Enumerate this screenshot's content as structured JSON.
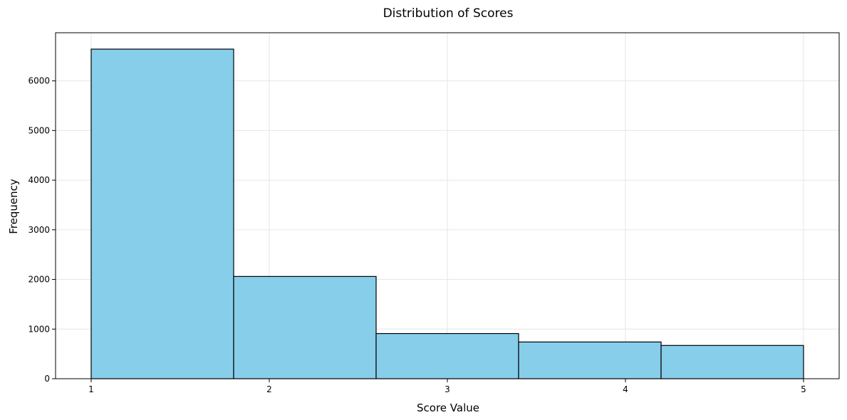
{
  "chart_data": {
    "type": "bar",
    "title": "Distribution of Scores",
    "xlabel": "Score Value",
    "ylabel": "Frequency",
    "bins": [
      {
        "start": 1.0,
        "end": 1.8,
        "value": 6640
      },
      {
        "start": 1.8,
        "end": 2.6,
        "value": 2060
      },
      {
        "start": 2.6,
        "end": 3.4,
        "value": 910
      },
      {
        "start": 3.4,
        "end": 4.2,
        "value": 740
      },
      {
        "start": 4.2,
        "end": 5.0,
        "value": 670
      }
    ],
    "xlim": [
      0.8,
      5.2
    ],
    "ylim": [
      0,
      6970
    ],
    "xticks": [
      1,
      2,
      3,
      4,
      5
    ],
    "xtick_labels": [
      "1",
      "2",
      "3",
      "4",
      "5"
    ],
    "yticks": [
      0,
      1000,
      2000,
      3000,
      4000,
      5000,
      6000
    ],
    "ytick_labels": [
      "0",
      "1000",
      "2000",
      "3000",
      "4000",
      "5000",
      "6000"
    ],
    "grid": true,
    "legend": "none",
    "colors": {
      "bar_fill": "#87CEEB",
      "bar_edge": "#000000",
      "grid": "#e6e6e6",
      "axes": "#000000"
    }
  }
}
